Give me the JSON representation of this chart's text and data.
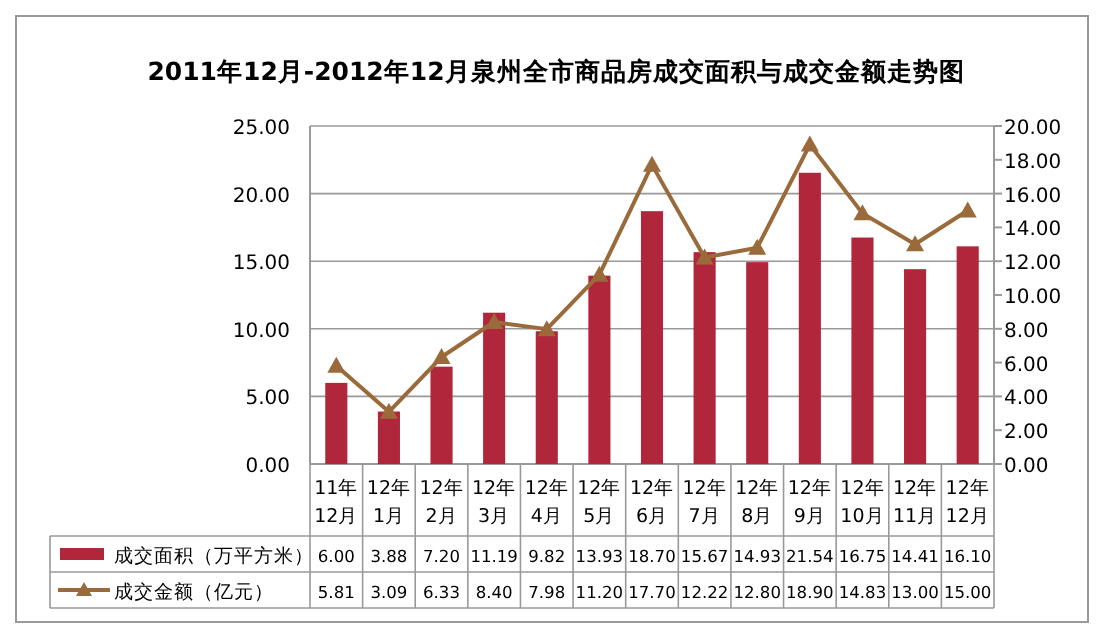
{
  "chart_data": {
    "type": "bar",
    "title": "2011年12月-2012年12月泉州全市商品房成交面积与成交金额走势图",
    "categories": [
      "11年12月",
      "12年1月",
      "12年2月",
      "12年3月",
      "12年4月",
      "12年5月",
      "12年6月",
      "12年7月",
      "12年8月",
      "12年9月",
      "12年10月",
      "12年11月",
      "12年12月"
    ],
    "series": [
      {
        "name": "成交面积（万平方米）",
        "color": "#b0263a",
        "values": [
          6.0,
          3.88,
          7.2,
          11.19,
          9.82,
          13.93,
          18.7,
          15.67,
          14.93,
          21.54,
          16.75,
          14.41,
          16.1
        ],
        "value_labels": [
          "6.00",
          "3.88",
          "7.20",
          "11.19",
          "9.82",
          "13.93",
          "18.70",
          "15.67",
          "14.93",
          "21.54",
          "16.75",
          "14.41",
          "16.10"
        ]
      },
      {
        "name": "成交金额（亿元）",
        "type": "line",
        "axis": "y2",
        "color": "#9b6a3a",
        "marker": "triangle",
        "values": [
          5.81,
          3.09,
          6.33,
          8.4,
          7.98,
          11.2,
          17.7,
          12.22,
          12.8,
          18.9,
          14.83,
          13.0,
          15.0
        ],
        "value_labels": [
          "5.81",
          "3.09",
          "6.33",
          "8.40",
          "7.98",
          "11.20",
          "17.70",
          "12.22",
          "12.80",
          "18.90",
          "14.83",
          "13.00",
          "15.00"
        ]
      }
    ],
    "ylim": [
      0,
      25
    ],
    "yticks": [
      {
        "value": 0,
        "label": "0.00"
      },
      {
        "value": 5,
        "label": "5.00"
      },
      {
        "value": 10,
        "label": "10.00"
      },
      {
        "value": 15,
        "label": "15.00"
      },
      {
        "value": 20,
        "label": "20.00"
      },
      {
        "value": 25,
        "label": "25.00"
      }
    ],
    "y2lim": [
      0,
      20
    ],
    "y2ticks": [
      {
        "value": 0,
        "label": "0.00"
      },
      {
        "value": 2,
        "label": "2.00"
      },
      {
        "value": 4,
        "label": "4.00"
      },
      {
        "value": 6,
        "label": "6.00"
      },
      {
        "value": 8,
        "label": "8.00"
      },
      {
        "value": 10,
        "label": "10.00"
      },
      {
        "value": 12,
        "label": "12.00"
      },
      {
        "value": 14,
        "label": "14.00"
      },
      {
        "value": 16,
        "label": "16.00"
      },
      {
        "value": 18,
        "label": "18.00"
      },
      {
        "value": 20,
        "label": "20.00"
      }
    ],
    "grid": "y",
    "legend": "bottom"
  }
}
